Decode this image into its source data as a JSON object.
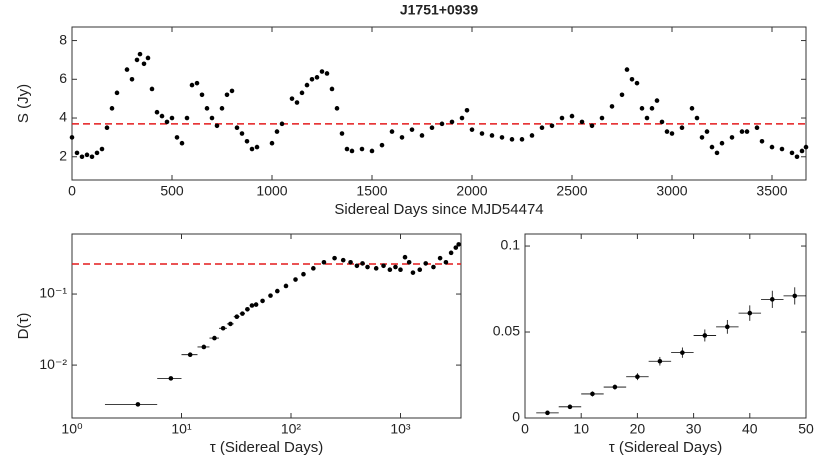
{
  "chart_data": [
    {
      "type": "scatter",
      "title": "J1751+0939",
      "xlabel": "Sidereal Days since MJD54474",
      "ylabel": "S (Jy)",
      "color": "#000000",
      "hline": 3.7,
      "hline_color": "#e41a1c",
      "xlim": [
        0,
        3670
      ],
      "ylim": [
        0.8,
        8.7
      ],
      "xticks": [
        0,
        500,
        1000,
        1500,
        2000,
        2500,
        3000,
        3500
      ],
      "yticks": [
        2,
        4,
        6,
        8
      ],
      "x": [
        0,
        25,
        50,
        75,
        100,
        125,
        150,
        175,
        200,
        225,
        275,
        300,
        325,
        340,
        360,
        380,
        400,
        425,
        450,
        475,
        500,
        525,
        550,
        575,
        600,
        625,
        650,
        675,
        700,
        725,
        750,
        775,
        800,
        825,
        850,
        875,
        900,
        925,
        1000,
        1025,
        1050,
        1100,
        1125,
        1150,
        1175,
        1200,
        1225,
        1250,
        1275,
        1300,
        1325,
        1350,
        1375,
        1400,
        1450,
        1500,
        1550,
        1600,
        1650,
        1700,
        1750,
        1800,
        1850,
        1900,
        1950,
        1975,
        2000,
        2050,
        2100,
        2150,
        2200,
        2250,
        2300,
        2350,
        2400,
        2450,
        2500,
        2550,
        2600,
        2650,
        2700,
        2750,
        2775,
        2800,
        2825,
        2850,
        2875,
        2900,
        2925,
        2950,
        2975,
        3000,
        3050,
        3100,
        3125,
        3150,
        3175,
        3200,
        3225,
        3250,
        3300,
        3350,
        3375,
        3425,
        3450,
        3500,
        3550,
        3600,
        3625,
        3650,
        3670
      ],
      "values": [
        3.0,
        2.2,
        2.0,
        2.1,
        2.0,
        2.2,
        2.4,
        3.5,
        4.5,
        5.3,
        6.5,
        6.0,
        7.0,
        7.3,
        6.8,
        7.1,
        5.5,
        4.3,
        4.1,
        3.8,
        4.0,
        3.0,
        2.7,
        4.0,
        5.7,
        5.8,
        5.2,
        4.5,
        4.0,
        3.6,
        4.5,
        5.2,
        5.4,
        3.5,
        3.2,
        2.8,
        2.4,
        2.5,
        2.7,
        3.3,
        3.7,
        5.0,
        4.8,
        5.3,
        5.7,
        6.0,
        6.1,
        6.4,
        6.3,
        5.5,
        4.5,
        3.2,
        2.4,
        2.3,
        2.4,
        2.3,
        2.6,
        3.3,
        3.0,
        3.4,
        3.1,
        3.5,
        3.7,
        3.8,
        4.0,
        4.4,
        3.4,
        3.2,
        3.1,
        3.0,
        2.9,
        2.9,
        3.1,
        3.5,
        3.6,
        4.0,
        4.1,
        3.8,
        3.6,
        4.0,
        4.6,
        5.2,
        6.5,
        6.0,
        5.8,
        4.5,
        4.0,
        4.5,
        4.9,
        3.8,
        3.3,
        3.2,
        3.5,
        4.5,
        4.0,
        3.0,
        3.3,
        2.5,
        2.2,
        2.7,
        3.0,
        3.3,
        3.3,
        3.5,
        2.8,
        2.5,
        2.4,
        2.2,
        2.0,
        2.3,
        2.5
      ]
    },
    {
      "type": "scatter",
      "xlabel": "τ (Sidereal Days)",
      "ylabel": "D(τ)",
      "color": "#000000",
      "xscale": "log",
      "yscale": "log",
      "hline": 0.265,
      "hline_color": "#e41a1c",
      "xerr": 2,
      "xlim": [
        1,
        3570
      ],
      "ylim": [
        0.0018,
        0.7
      ],
      "xticks": [
        {
          "value": 1,
          "label": "10⁰"
        },
        {
          "value": 10,
          "label": "10¹"
        },
        {
          "value": 100,
          "label": "10²"
        },
        {
          "value": 1000,
          "label": "10³"
        }
      ],
      "yticks": [
        {
          "value": 0.01,
          "label": "10⁻²"
        },
        {
          "value": 0.1,
          "label": "10⁻¹"
        }
      ],
      "x": [
        4,
        8,
        12,
        16,
        20,
        24,
        28,
        32,
        36,
        40,
        44,
        48,
        55,
        65,
        75,
        90,
        110,
        130,
        160,
        200,
        250,
        300,
        350,
        400,
        450,
        500,
        600,
        700,
        800,
        900,
        1000,
        1100,
        1200,
        1300,
        1500,
        1700,
        2000,
        2300,
        2600,
        2900,
        3200,
        3400
      ],
      "values": [
        0.0028,
        0.0065,
        0.014,
        0.018,
        0.024,
        0.033,
        0.038,
        0.048,
        0.053,
        0.061,
        0.069,
        0.071,
        0.08,
        0.095,
        0.11,
        0.13,
        0.16,
        0.19,
        0.23,
        0.28,
        0.32,
        0.3,
        0.28,
        0.25,
        0.27,
        0.24,
        0.23,
        0.25,
        0.22,
        0.24,
        0.22,
        0.33,
        0.28,
        0.2,
        0.22,
        0.27,
        0.24,
        0.32,
        0.28,
        0.38,
        0.45,
        0.5
      ]
    },
    {
      "type": "scatter",
      "xlabel": "τ (Sidereal Days)",
      "color": "#000000",
      "xerr": 2,
      "xlim": [
        0,
        50
      ],
      "ylim": [
        0,
        0.107
      ],
      "xticks": [
        0,
        10,
        20,
        30,
        40,
        50
      ],
      "yticks": [
        0,
        0.05,
        0.1
      ],
      "x": [
        4,
        8,
        12,
        16,
        20,
        24,
        28,
        32,
        36,
        40,
        44,
        48
      ],
      "values": [
        0.003,
        0.0065,
        0.014,
        0.018,
        0.024,
        0.033,
        0.038,
        0.048,
        0.053,
        0.061,
        0.069,
        0.071
      ],
      "yerr": [
        0.001,
        0.001,
        0.0015,
        0.0015,
        0.002,
        0.0025,
        0.003,
        0.0035,
        0.004,
        0.0045,
        0.005,
        0.005
      ]
    }
  ]
}
